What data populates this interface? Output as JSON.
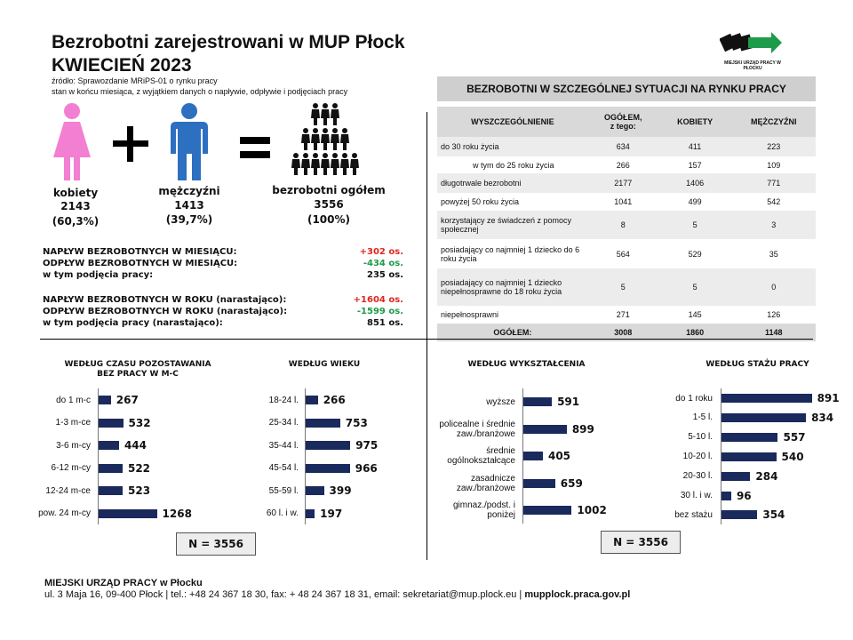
{
  "header": {
    "title": "Bezrobotni zarejestrowani  w MUP Płock",
    "subtitle": "KWIECIEŃ  2023",
    "source": "źródło: Sprawozdanie MRiPS-01 o rynku pracy",
    "note": "stan w końcu miesiąca, z wyjątkiem danych o napływie, odpływie i podjęciach pracy"
  },
  "logo": {
    "text": "MIEJSKI URZĄD PRACY W PŁOCKU",
    "accent": "#1e9b4a"
  },
  "totals": {
    "women": {
      "label": "kobiety",
      "value": "2143",
      "pct": "(60,3%)",
      "color": "#f37fd2"
    },
    "men": {
      "label": "mężczyźni",
      "value": "1413",
      "pct": "(39,7%)",
      "color": "#2d6fc0"
    },
    "all": {
      "label": "bezrobotni ogółem",
      "value": "3556",
      "pct": "(100%)"
    }
  },
  "flows": [
    {
      "label": "NAPŁYW  BEZROBOTNYCH  W  MIESIĄCU:",
      "value": "+302 os.",
      "color": "red"
    },
    {
      "label": "ODPŁYW  BEZROBOTNYCH  W  MIESIĄCU:",
      "value": "-434 os.",
      "color": "green"
    },
    {
      "label": "w tym podjęcia pracy:",
      "value": "235 os.",
      "color": "black"
    },
    {
      "label": "NAPŁYW  BEZROBOTNYCH  W  ROKU  (narastająco):",
      "value": "+1604  os.",
      "color": "red"
    },
    {
      "label": "ODPŁYW  BEZROBOTNYCH  W  ROKU  (narastająco):",
      "value": "-1599  os.",
      "color": "green"
    },
    {
      "label": "w tym podjęcia pracy (narastająco):",
      "value": "851  os.",
      "color": "black"
    }
  ],
  "table": {
    "title": "BEZROBOTNI W SZCZEGÓLNEJ SYTUACJI NA RYNKU PRACY",
    "headers": [
      "WYSZCZEGÓLNIENIE",
      "OGÓŁEM,\nz tego:",
      "KOBIETY",
      "MĘŻCZYŹNI"
    ],
    "rows": [
      {
        "label": "do 30 roku życia",
        "total": "634",
        "women": "411",
        "men": "223",
        "indent": false
      },
      {
        "label": "w tym do 25 roku życia",
        "total": "266",
        "women": "157",
        "men": "109",
        "indent": true
      },
      {
        "label": "długotrwale bezrobotni",
        "total": "2177",
        "women": "1406",
        "men": "771",
        "indent": false
      },
      {
        "label": "powyżej 50 roku życia",
        "total": "1041",
        "women": "499",
        "men": "542",
        "indent": false
      },
      {
        "label": "korzystający ze świadczeń z pomocy społecznej",
        "total": "8",
        "women": "5",
        "men": "3",
        "indent": false
      },
      {
        "label": "posiadający co najmniej 1 dziecko do 6 roku życia",
        "total": "564",
        "women": "529",
        "men": "35",
        "indent": false
      },
      {
        "label": "posiadający co najmniej 1 dziecko niepełnosprawne do 18 roku życia",
        "total": "5",
        "women": "5",
        "men": "0",
        "indent": false
      },
      {
        "label": "niepełnosprawni",
        "total": "271",
        "women": "145",
        "men": "126",
        "indent": false
      }
    ],
    "total_row": {
      "label": "OGÓŁEM:",
      "total": "3008",
      "women": "1860",
      "men": "1148"
    }
  },
  "chart_data": [
    {
      "type": "bar",
      "title": "WEDŁUG CZASU POZOSTAWANIA\nBEZ PRACY W M-C",
      "categories": [
        "do 1 m-c",
        "1-3 m-ce",
        "3-6 m-cy",
        "6-12 m-cy",
        "12-24 m-ce",
        "pow. 24 m-cy"
      ],
      "values": [
        267,
        532,
        444,
        522,
        523,
        1268
      ]
    },
    {
      "type": "bar",
      "title": "WEDŁUG WIEKU",
      "categories": [
        "18-24 l.",
        "25-34 l.",
        "35-44 l.",
        "45-54 l.",
        "55-59 l.",
        "60 l. i w."
      ],
      "values": [
        266,
        753,
        975,
        966,
        399,
        197
      ]
    },
    {
      "type": "bar",
      "title": "WEDŁUG WYKSZTAŁCENIA",
      "categories": [
        "wyższe",
        "policealne i średnie\nzaw./branżowe",
        "średnie\nogólnokształcące",
        "zasadnicze\nzaw./branżowe",
        "gimnaz./podst. i\nponiżej"
      ],
      "values": [
        591,
        899,
        405,
        659,
        1002
      ]
    },
    {
      "type": "bar",
      "title": "WEDŁUG STAŻU PRACY",
      "categories": [
        "do 1 roku",
        "1-5 l.",
        "5-10 l.",
        "10-20 l.",
        "20-30 l.",
        "30 l. i w.",
        "bez stażu"
      ],
      "values": [
        891,
        834,
        557,
        540,
        284,
        96,
        354
      ]
    }
  ],
  "n_label": "N = 3556",
  "footer": {
    "org": "MIEJSKI URZĄD PRACY w Płocku",
    "address": "ul. 3 Maja 16, 09-400 Płock | tel.: +48 24  367 18 30, fax: + 48 24  367 18 31, email: sekretariat@mup.plock.eu | ",
    "website": "mupplock.praca.gov.pl"
  }
}
